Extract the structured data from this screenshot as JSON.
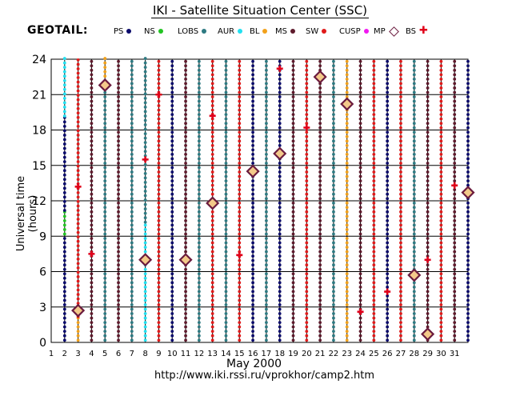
{
  "header": {
    "title": "IKI - Satellite Situation Center (SSC)",
    "satellite": "GEOTAIL:"
  },
  "legend": [
    {
      "label": "PS",
      "marker": "dot",
      "color": "#0a0a6b"
    },
    {
      "label": "NS",
      "marker": "dot",
      "color": "#22c422"
    },
    {
      "label": "LOBS",
      "marker": "dot",
      "color": "#2e7a82"
    },
    {
      "label": "AUR",
      "marker": "dot",
      "color": "#22e0f0"
    },
    {
      "label": "BL",
      "marker": "dot",
      "color": "#f2a11a"
    },
    {
      "label": "MS",
      "marker": "dot",
      "color": "#5e1a2c"
    },
    {
      "label": "SW",
      "marker": "dot",
      "color": "#e01a1a"
    },
    {
      "label": "CUSP",
      "marker": "dot",
      "color": "#f018f0"
    },
    {
      "label": "MP",
      "marker": "diamond",
      "color": "#6b1b3e"
    },
    {
      "label": "BS",
      "marker": "cross",
      "color": "#e0001a"
    }
  ],
  "footer": {
    "x_title": "May    2000",
    "url": "http://www.iki.rssi.ru/vprokhor/camp2.htm"
  },
  "chart_data": {
    "type": "scatter",
    "xlabel": "May 2000",
    "ylabel": "Universal time  (hours)",
    "x_ticks": [
      "1",
      "2",
      "3",
      "4",
      "5",
      "6",
      "7",
      "8",
      "9",
      "10",
      "11",
      "12",
      "13",
      "14",
      "15",
      "16",
      "17",
      "18",
      "19",
      "20",
      "21",
      "22",
      "23",
      "24",
      "25",
      "26",
      "27",
      "28",
      "29",
      "30",
      "31"
    ],
    "y_ticks": [
      "0",
      "3",
      "6",
      "9",
      "12",
      "15",
      "18",
      "21",
      "24"
    ],
    "xlim": [
      1,
      32
    ],
    "ylim": [
      0,
      24
    ],
    "grid": true,
    "region_colors": {
      "PS": "#0a0a6b",
      "NS": "#22c422",
      "LOBS": "#2e7a82",
      "AUR": "#22e0f0",
      "BL": "#f2a11a",
      "MS": "#5e1a2c",
      "SW": "#e01a1a",
      "CUSP": "#f018f0"
    },
    "columns": [
      {
        "day": 2,
        "segments": [
          {
            "from": 0,
            "to": 9,
            "region": "PS"
          },
          {
            "from": 9,
            "to": 11,
            "region": "NS"
          },
          {
            "from": 11,
            "to": 19,
            "region": "PS"
          },
          {
            "from": 19,
            "to": 24,
            "region": "AUR"
          }
        ]
      },
      {
        "day": 3,
        "segments": [
          {
            "from": 0,
            "to": 2,
            "region": "BL"
          },
          {
            "from": 2,
            "to": 24,
            "region": "SW"
          }
        ]
      },
      {
        "day": 4,
        "segments": [
          {
            "from": 0,
            "to": 24,
            "region": "MS"
          }
        ]
      },
      {
        "day": 5,
        "segments": [
          {
            "from": 0,
            "to": 22,
            "region": "LOBS"
          },
          {
            "from": 22,
            "to": 24,
            "region": "BL"
          }
        ]
      },
      {
        "day": 6,
        "segments": [
          {
            "from": 0,
            "to": 24,
            "region": "MS"
          }
        ]
      },
      {
        "day": 7,
        "segments": [
          {
            "from": 0,
            "to": 24,
            "region": "LOBS"
          }
        ]
      },
      {
        "day": 8,
        "segments": [
          {
            "from": 0,
            "to": 10,
            "region": "AUR"
          },
          {
            "from": 10,
            "to": 24,
            "region": "LOBS"
          }
        ]
      },
      {
        "day": 9,
        "segments": [
          {
            "from": 0,
            "to": 24,
            "region": "SW"
          }
        ]
      },
      {
        "day": 10,
        "segments": [
          {
            "from": 0,
            "to": 24,
            "region": "PS"
          }
        ]
      },
      {
        "day": 11,
        "segments": [
          {
            "from": 0,
            "to": 24,
            "region": "MS"
          }
        ]
      },
      {
        "day": 12,
        "segments": [
          {
            "from": 0,
            "to": 12,
            "region": "LOBS"
          },
          {
            "from": 12,
            "to": 24,
            "region": "LOBS"
          }
        ]
      },
      {
        "day": 13,
        "segments": [
          {
            "from": 0,
            "to": 24,
            "region": "SW"
          }
        ]
      },
      {
        "day": 14,
        "segments": [
          {
            "from": 0,
            "to": 24,
            "region": "LOBS"
          }
        ]
      },
      {
        "day": 15,
        "segments": [
          {
            "from": 0,
            "to": 24,
            "region": "SW"
          }
        ]
      },
      {
        "day": 16,
        "segments": [
          {
            "from": 0,
            "to": 24,
            "region": "PS"
          }
        ]
      },
      {
        "day": 17,
        "segments": [
          {
            "from": 0,
            "to": 24,
            "region": "LOBS"
          }
        ]
      },
      {
        "day": 18,
        "segments": [
          {
            "from": 0,
            "to": 24,
            "region": "PS"
          }
        ]
      },
      {
        "day": 19,
        "segments": [
          {
            "from": 0,
            "to": 24,
            "region": "MS"
          }
        ]
      },
      {
        "day": 20,
        "segments": [
          {
            "from": 0,
            "to": 24,
            "region": "SW"
          }
        ]
      },
      {
        "day": 21,
        "segments": [
          {
            "from": 0,
            "to": 24,
            "region": "MS"
          }
        ]
      },
      {
        "day": 22,
        "segments": [
          {
            "from": 0,
            "to": 24,
            "region": "LOBS"
          }
        ]
      },
      {
        "day": 23,
        "segments": [
          {
            "from": 0,
            "to": 24,
            "region": "BL"
          }
        ]
      },
      {
        "day": 24,
        "segments": [
          {
            "from": 0,
            "to": 24,
            "region": "MS"
          }
        ]
      },
      {
        "day": 25,
        "segments": [
          {
            "from": 0,
            "to": 24,
            "region": "SW"
          }
        ]
      },
      {
        "day": 26,
        "segments": [
          {
            "from": 0,
            "to": 24,
            "region": "PS"
          }
        ]
      },
      {
        "day": 27,
        "segments": [
          {
            "from": 0,
            "to": 24,
            "region": "SW"
          }
        ]
      },
      {
        "day": 28,
        "segments": [
          {
            "from": 0,
            "to": 24,
            "region": "LOBS"
          }
        ]
      },
      {
        "day": 29,
        "segments": [
          {
            "from": 0,
            "to": 24,
            "region": "MS"
          }
        ]
      },
      {
        "day": 30,
        "segments": [
          {
            "from": 0,
            "to": 24,
            "region": "SW"
          }
        ]
      },
      {
        "day": 31,
        "segments": [
          {
            "from": 0,
            "to": 24,
            "region": "MS"
          }
        ]
      },
      {
        "day": 32,
        "segments": [
          {
            "from": 0,
            "to": 24,
            "region": "PS"
          }
        ]
      }
    ],
    "mp_crossings": [
      {
        "day": 3,
        "hour": 2.7
      },
      {
        "day": 5,
        "hour": 21.8
      },
      {
        "day": 8,
        "hour": 7.0
      },
      {
        "day": 11,
        "hour": 7.0
      },
      {
        "day": 13,
        "hour": 11.8
      },
      {
        "day": 16,
        "hour": 14.5
      },
      {
        "day": 18,
        "hour": 16.0
      },
      {
        "day": 21,
        "hour": 22.5
      },
      {
        "day": 23,
        "hour": 20.2
      },
      {
        "day": 28,
        "hour": 5.7
      },
      {
        "day": 29,
        "hour": 0.7
      },
      {
        "day": 32,
        "hour": 12.7
      }
    ],
    "bs_crossings": [
      {
        "day": 3,
        "hour": 13.2
      },
      {
        "day": 4,
        "hour": 7.5
      },
      {
        "day": 8,
        "hour": 15.5
      },
      {
        "day": 9,
        "hour": 21.0
      },
      {
        "day": 13,
        "hour": 19.2
      },
      {
        "day": 15,
        "hour": 7.4
      },
      {
        "day": 18,
        "hour": 23.2
      },
      {
        "day": 20,
        "hour": 18.2
      },
      {
        "day": 24,
        "hour": 2.6
      },
      {
        "day": 26,
        "hour": 4.3
      },
      {
        "day": 29,
        "hour": 7.0
      },
      {
        "day": 31,
        "hour": 13.3
      }
    ]
  }
}
